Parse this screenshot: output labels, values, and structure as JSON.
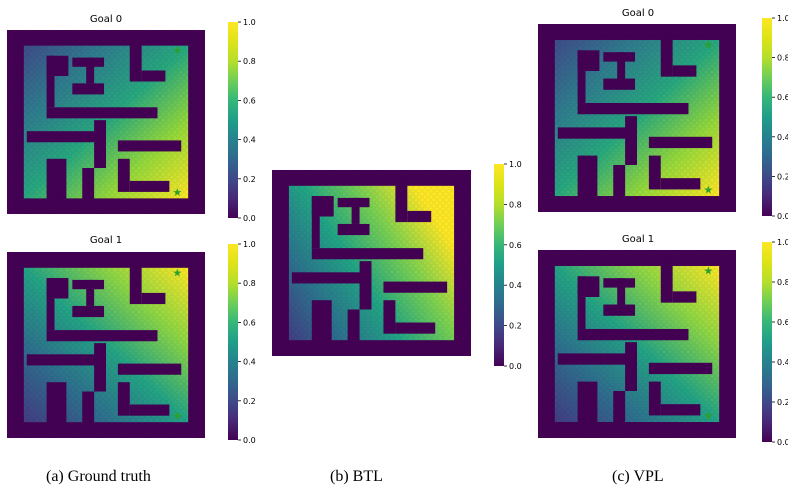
{
  "chart_data": [
    {
      "type": "heatmap",
      "group": 0,
      "title": "Goal 0",
      "cmap": "viridis",
      "colorbar_ticks": [
        "0.0",
        "0.2",
        "0.4",
        "0.6",
        "0.8",
        "1.0"
      ],
      "clim": [
        0,
        1
      ],
      "goal_markers": [
        "star-top-right",
        "star-bottom-right"
      ],
      "gradient": {
        "high": "bottom-right",
        "low": "top-left"
      }
    },
    {
      "type": "heatmap",
      "group": 0,
      "title": "Goal 1",
      "cmap": "viridis",
      "colorbar_ticks": [
        "0.0",
        "0.2",
        "0.4",
        "0.6",
        "0.8",
        "1.0"
      ],
      "clim": [
        0,
        1
      ],
      "goal_markers": [
        "star-top-right",
        "star-bottom-right"
      ],
      "gradient": {
        "high": "top-right",
        "low": "bottom-left"
      }
    },
    {
      "type": "heatmap",
      "group": 1,
      "title": "",
      "cmap": "viridis",
      "colorbar_ticks": [
        "0.0",
        "0.2",
        "0.4",
        "0.6",
        "0.8",
        "1.0"
      ],
      "clim": [
        0,
        1
      ],
      "goal_markers": [],
      "gradient": {
        "high": "right",
        "low": "bottom-left"
      }
    },
    {
      "type": "heatmap",
      "group": 2,
      "title": "Goal 0",
      "cmap": "viridis",
      "colorbar_ticks": [
        "0.0",
        "0.2",
        "0.4",
        "0.6",
        "0.8",
        "1.0"
      ],
      "clim": [
        0,
        1
      ],
      "goal_markers": [
        "star-top-right",
        "star-bottom-right"
      ],
      "gradient": {
        "high": "bottom-right",
        "low": "top-left"
      }
    },
    {
      "type": "heatmap",
      "group": 2,
      "title": "Goal 1",
      "cmap": "viridis",
      "colorbar_ticks": [
        "0.0",
        "0.2",
        "0.4",
        "0.6",
        "0.8",
        "1.0"
      ],
      "clim": [
        0,
        1
      ],
      "goal_markers": [
        "star-top-right",
        "star-bottom-right"
      ],
      "gradient": {
        "high": "top-right",
        "low": "bottom-left"
      }
    }
  ],
  "captions": [
    "(a) Ground truth",
    "(b) BTL",
    "(c) VPL"
  ],
  "colors": {
    "wall": "#440154",
    "star": "#2ca02c",
    "text": "#000000"
  }
}
